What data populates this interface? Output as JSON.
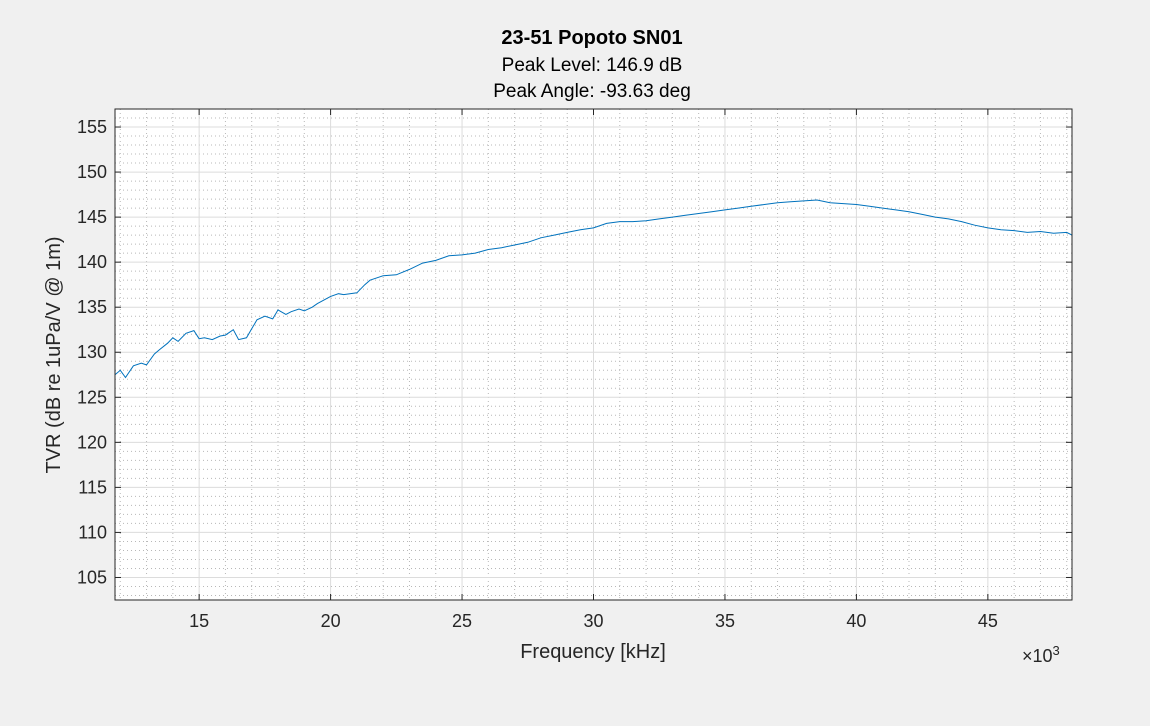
{
  "chart_data": {
    "type": "line",
    "title": "23-51 Popoto SN01",
    "subtitle_lines": [
      "Peak Level: 146.9 dB",
      "Peak Angle: -93.63 deg"
    ],
    "xlabel": "Frequency [kHz]",
    "ylabel": "TVR (dB re 1uPa/V @ 1m)",
    "x_exponent_label": "×10",
    "x_exponent_power": "3",
    "xlim": [
      11800,
      48200
    ],
    "ylim": [
      102.5,
      157
    ],
    "x_ticks": [
      15000,
      20000,
      25000,
      30000,
      35000,
      40000,
      45000
    ],
    "x_tick_labels": [
      "15",
      "20",
      "25",
      "30",
      "35",
      "40",
      "45"
    ],
    "y_ticks": [
      105,
      110,
      115,
      120,
      125,
      130,
      135,
      140,
      145,
      150,
      155
    ],
    "y_tick_labels": [
      "105",
      "110",
      "115",
      "120",
      "125",
      "130",
      "135",
      "140",
      "145",
      "150",
      "155"
    ],
    "grid": true,
    "minor_grid": true,
    "series_color": "#0072bd",
    "series": [
      {
        "x": [
          11800,
          12000,
          12200,
          12500,
          12800,
          13000,
          13300,
          13500,
          13800,
          14000,
          14200,
          14500,
          14800,
          15000,
          15200,
          15500,
          15800,
          16000,
          16300,
          16500,
          16800,
          17000,
          17200,
          17500,
          17800,
          18000,
          18300,
          18500,
          18800,
          19000,
          19300,
          19500,
          20000,
          20300,
          20500,
          21000,
          21300,
          21500,
          22000,
          22500,
          23000,
          23500,
          24000,
          24500,
          25000,
          25500,
          26000,
          26500,
          27000,
          27500,
          28000,
          28500,
          29000,
          29500,
          30000,
          30500,
          31000,
          31500,
          32000,
          32500,
          33000,
          33500,
          34000,
          34500,
          35000,
          35500,
          36000,
          36500,
          37000,
          37500,
          38000,
          38500,
          39000,
          39500,
          40000,
          40500,
          41000,
          41500,
          42000,
          42500,
          43000,
          43500,
          44000,
          44500,
          45000,
          45500,
          46000,
          46500,
          47000,
          47500,
          48000,
          48200
        ],
        "y": [
          127.5,
          128.0,
          127.2,
          128.5,
          128.8,
          128.6,
          129.8,
          130.3,
          131.0,
          131.6,
          131.2,
          132.1,
          132.4,
          131.5,
          131.6,
          131.4,
          131.8,
          131.9,
          132.5,
          131.4,
          131.6,
          132.6,
          133.6,
          134.0,
          133.7,
          134.7,
          134.2,
          134.5,
          134.8,
          134.6,
          135.0,
          135.4,
          136.2,
          136.5,
          136.4,
          136.6,
          137.5,
          138.0,
          138.5,
          138.6,
          139.2,
          139.9,
          140.2,
          140.7,
          140.8,
          141.0,
          141.4,
          141.6,
          141.9,
          142.2,
          142.7,
          143.0,
          143.3,
          143.6,
          143.8,
          144.3,
          144.5,
          144.5,
          144.6,
          144.8,
          145.0,
          145.2,
          145.4,
          145.6,
          145.8,
          146.0,
          146.2,
          146.4,
          146.6,
          146.7,
          146.8,
          146.9,
          146.6,
          146.5,
          146.4,
          146.2,
          146.0,
          145.8,
          145.6,
          145.3,
          145.0,
          144.8,
          144.5,
          144.1,
          143.8,
          143.6,
          143.5,
          143.3,
          143.4,
          143.2,
          143.3,
          143.0
        ]
      }
    ]
  }
}
